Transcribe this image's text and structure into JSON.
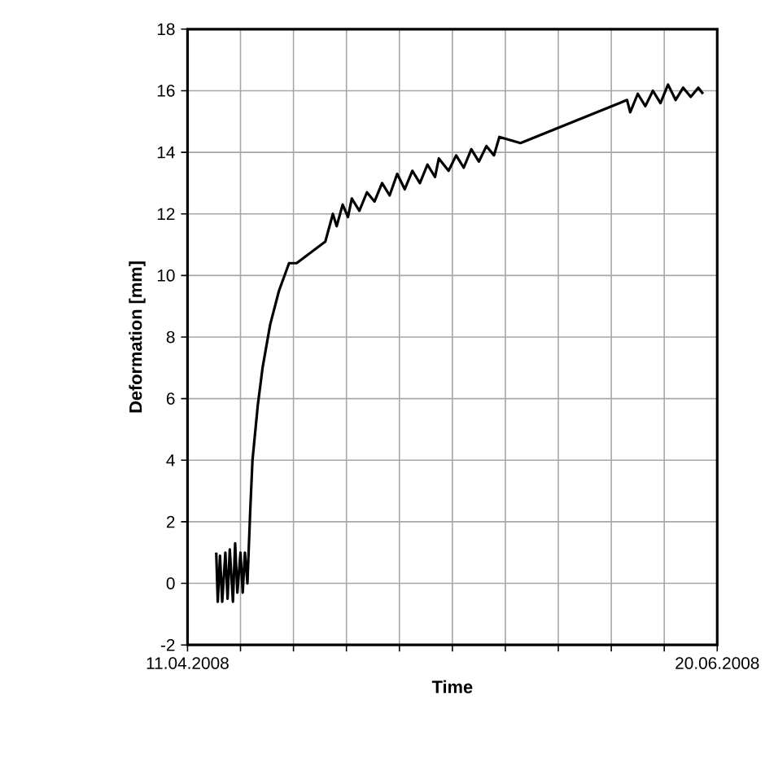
{
  "chart_data": {
    "type": "line",
    "xlabel": "Time",
    "ylabel": "Deformation [mm]",
    "xlim": [
      "2008-04-11",
      "2008-06-20"
    ],
    "ylim": [
      -2,
      18
    ],
    "xticks": [
      {
        "value": "2008-04-11",
        "label": "11.04.2008"
      },
      {
        "value": "2008-04-18",
        "label": null
      },
      {
        "value": "2008-04-25",
        "label": null
      },
      {
        "value": "2008-05-02",
        "label": null
      },
      {
        "value": "2008-05-09",
        "label": null
      },
      {
        "value": "2008-05-16",
        "label": null
      },
      {
        "value": "2008-05-23",
        "label": null
      },
      {
        "value": "2008-05-30",
        "label": null
      },
      {
        "value": "2008-06-06",
        "label": null
      },
      {
        "value": "2008-06-13",
        "label": null
      },
      {
        "value": "2008-06-20",
        "label": "20.06.2008"
      }
    ],
    "yticks": [
      -2,
      0,
      2,
      4,
      6,
      8,
      10,
      12,
      14,
      16,
      18
    ],
    "grid": true,
    "marker": "none",
    "line_style": "solid",
    "series": [
      {
        "color": "#000000",
        "x": [
          "2008-04-14T19:00",
          "2008-04-15T00:00",
          "2008-04-15T07:00",
          "2008-04-15T14:00",
          "2008-04-16T00:00",
          "2008-04-16T07:00",
          "2008-04-16T14:00",
          "2008-04-17T00:00",
          "2008-04-17T07:00",
          "2008-04-17T14:00",
          "2008-04-18T00:00",
          "2008-04-18T07:00",
          "2008-04-18T14:00",
          "2008-04-18T22:00",
          "2008-04-19T07:00",
          "2008-04-19T14:00",
          "2008-04-20T07:00",
          "2008-04-20T22:00",
          "2008-04-21T22:00",
          "2008-04-23T02:00",
          "2008-04-24T10:00",
          "2008-04-25T10:00",
          "2008-04-29T05:00",
          "2008-04-30T05:00",
          "2008-04-30T17:00",
          "2008-05-01T12:00",
          "2008-05-02T05:00",
          "2008-05-02T17:00",
          "2008-05-03T17:00",
          "2008-05-04T17:00",
          "2008-05-05T17:00",
          "2008-05-06T17:00",
          "2008-05-07T17:00",
          "2008-05-08T17:00",
          "2008-05-09T17:00",
          "2008-05-10T17:00",
          "2008-05-11T17:00",
          "2008-05-12T17:00",
          "2008-05-13T17:00",
          "2008-05-14T05:00",
          "2008-05-15T12:00",
          "2008-05-16T12:00",
          "2008-05-17T12:00",
          "2008-05-18T12:00",
          "2008-05-19T12:00",
          "2008-05-20T12:00",
          "2008-05-21T12:00",
          "2008-05-22T05:00",
          "2008-05-25T00:00",
          "2008-06-08T02:00",
          "2008-06-08T12:00",
          "2008-06-09T12:00",
          "2008-06-10T12:00",
          "2008-06-11T12:00",
          "2008-06-12T12:00",
          "2008-06-13T12:00",
          "2008-06-14T12:00",
          "2008-06-15T12:00",
          "2008-06-16T12:00",
          "2008-06-17T12:00",
          "2008-06-18T03:00"
        ],
        "values": [
          1.0,
          -0.6,
          0.9,
          -0.6,
          1.0,
          -0.5,
          1.1,
          -0.6,
          1.3,
          -0.3,
          1.0,
          -0.3,
          1.0,
          0.0,
          2.4,
          4.0,
          5.8,
          7.0,
          8.4,
          9.5,
          10.4,
          10.4,
          11.1,
          12.0,
          11.6,
          12.3,
          11.9,
          12.5,
          12.1,
          12.7,
          12.4,
          13.0,
          12.6,
          13.3,
          12.8,
          13.4,
          13.0,
          13.6,
          13.2,
          13.8,
          13.4,
          13.9,
          13.5,
          14.1,
          13.7,
          14.2,
          13.9,
          14.5,
          14.3,
          15.7,
          15.3,
          15.9,
          15.5,
          16.0,
          15.6,
          16.2,
          15.7,
          16.1,
          15.8,
          16.1,
          15.9
        ]
      }
    ]
  }
}
